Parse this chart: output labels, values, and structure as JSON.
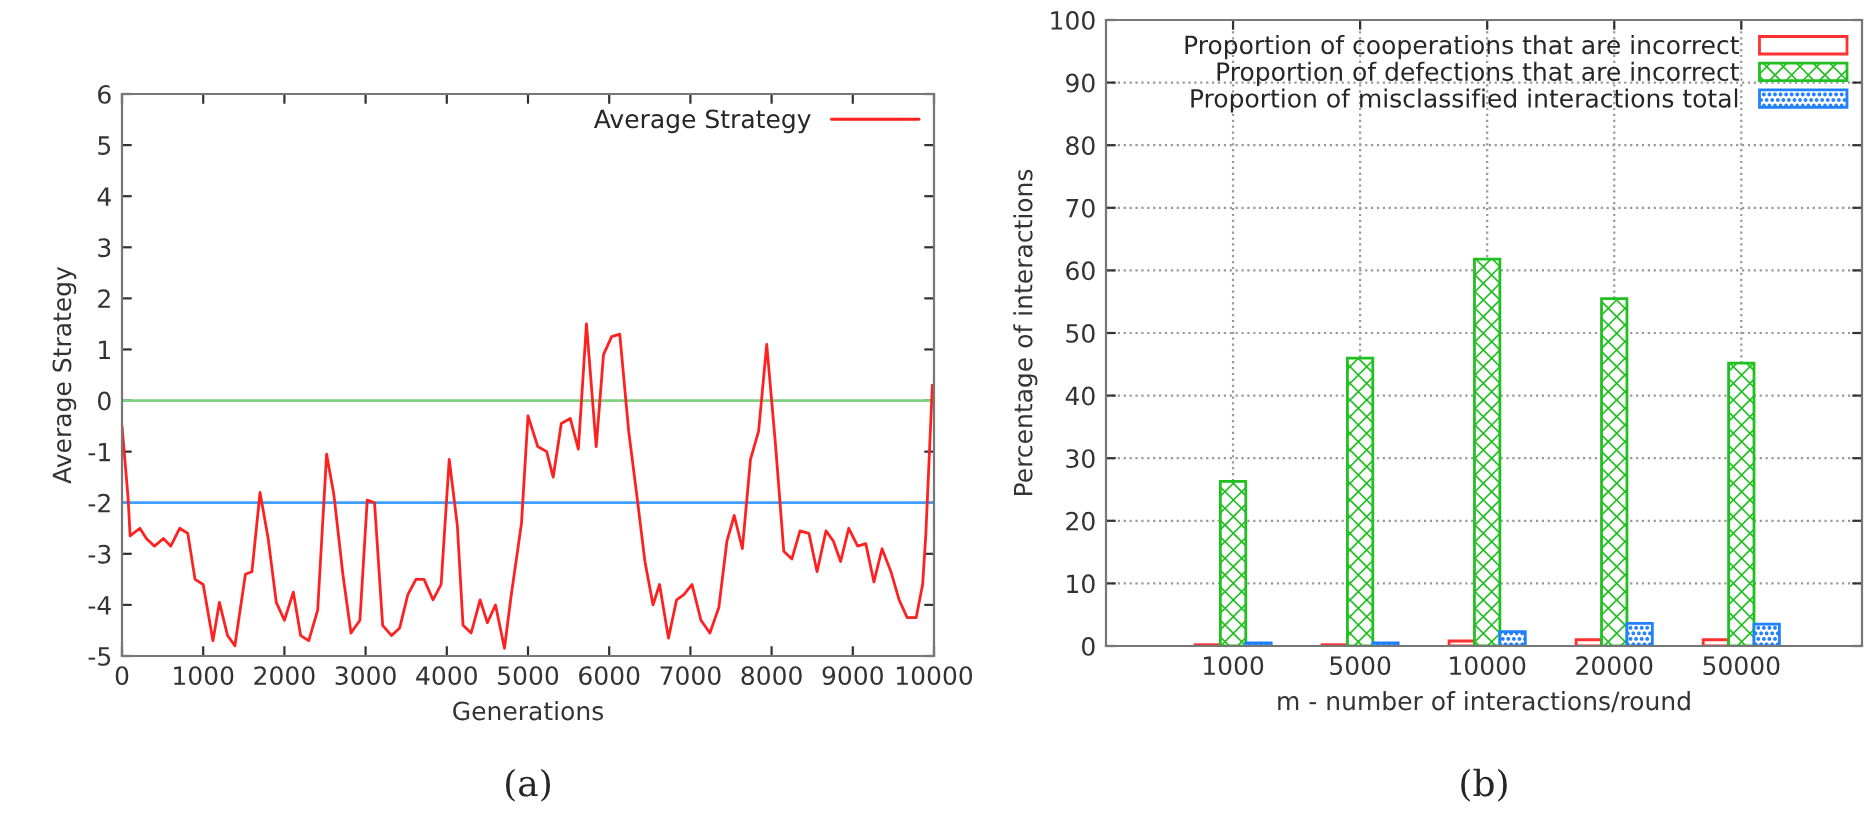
{
  "chart_data": [
    {
      "type": "line",
      "xlabel": "Generations",
      "ylabel": "Average Strategy",
      "annotations": [
        "(a)"
      ],
      "xlim": [
        0,
        10000
      ],
      "xticks": [
        0,
        1000,
        2000,
        3000,
        4000,
        5000,
        6000,
        7000,
        8000,
        9000,
        {
          "value": 10000,
          "label": "10000"
        }
      ],
      "ylim": [
        -5,
        6
      ],
      "yticks": [
        -5,
        -4,
        -3,
        -2,
        -1,
        0,
        1,
        2,
        3,
        4,
        5,
        6
      ],
      "grid": false,
      "legend": "top right",
      "ref_lines": [
        {
          "axis": "y",
          "value": 0,
          "color": "#7fd07f"
        },
        {
          "axis": "y",
          "value": -2,
          "color": "#3f9fff"
        }
      ],
      "series": [
        {
          "name": "Average Strategy",
          "color": "#ff2020",
          "x": [
            0,
            75,
            100,
            220,
            300,
            400,
            510,
            600,
            710,
            810,
            900,
            1000,
            1120,
            1200,
            1300,
            1390,
            1520,
            1600,
            1700,
            1800,
            1900,
            2000,
            2110,
            2200,
            2300,
            2410,
            2520,
            2610,
            2720,
            2820,
            2930,
            3020,
            3110,
            3210,
            3320,
            3420,
            3520,
            3620,
            3720,
            3830,
            3930,
            4030,
            4130,
            4200,
            4300,
            4410,
            4500,
            4600,
            4710,
            4790,
            4920,
            5000,
            5120,
            5230,
            5310,
            5410,
            5520,
            5620,
            5720,
            5840,
            5930,
            6030,
            6130,
            6240,
            6340,
            6440,
            6540,
            6620,
            6730,
            6830,
            6920,
            7020,
            7130,
            7240,
            7350,
            7450,
            7540,
            7640,
            7740,
            7840,
            7940,
            8050,
            8150,
            8250,
            8350,
            8460,
            8560,
            8670,
            8760,
            8850,
            8950,
            9060,
            9160,
            9260,
            9360,
            9470,
            9570,
            9670,
            9780,
            9860,
            9900,
            9980
          ],
          "values": [
            -0.5,
            -1.9,
            -2.65,
            -2.5,
            -2.7,
            -2.85,
            -2.7,
            -2.85,
            -2.5,
            -2.6,
            -3.5,
            -3.6,
            -4.7,
            -3.95,
            -4.6,
            -4.8,
            -3.4,
            -3.35,
            -1.8,
            -2.7,
            -3.95,
            -4.3,
            -3.75,
            -4.6,
            -4.7,
            -4.1,
            -1.05,
            -1.85,
            -3.4,
            -4.55,
            -4.3,
            -1.95,
            -2.0,
            -4.4,
            -4.6,
            -4.45,
            -3.8,
            -3.5,
            -3.5,
            -3.9,
            -3.6,
            -1.15,
            -2.45,
            -4.4,
            -4.55,
            -3.9,
            -4.35,
            -4.0,
            -4.85,
            -3.85,
            -2.4,
            -0.3,
            -0.9,
            -1.0,
            -1.5,
            -0.45,
            -0.35,
            -0.95,
            1.5,
            -0.9,
            0.9,
            1.25,
            1.3,
            -0.6,
            -1.85,
            -3.15,
            -4.0,
            -3.6,
            -4.65,
            -3.9,
            -3.8,
            -3.6,
            -4.3,
            -4.55,
            -4.05,
            -2.75,
            -2.25,
            -2.9,
            -1.15,
            -0.6,
            1.1,
            -0.9,
            -2.95,
            -3.1,
            -2.55,
            -2.6,
            -3.35,
            -2.55,
            -2.75,
            -3.15,
            -2.5,
            -2.85,
            -2.8,
            -3.55,
            -2.9,
            -3.35,
            -3.9,
            -4.25,
            -4.25,
            -3.6,
            -2.6,
            0.3
          ]
        }
      ]
    },
    {
      "type": "bar",
      "xlabel": "m - number of interactions/round",
      "ylabel": "Percentage of interactions",
      "annotations": [
        "(b)"
      ],
      "categories": [
        "1000",
        "5000",
        "10000",
        "20000",
        "50000"
      ],
      "ylim": [
        0,
        100
      ],
      "yticks": [
        0,
        10,
        20,
        30,
        40,
        50,
        60,
        70,
        80,
        90,
        100
      ],
      "grid": true,
      "legend": "top right",
      "series": [
        {
          "name": "Proportion of cooperations that are incorrect",
          "color": "#ff3030",
          "values": [
            0.2,
            0.2,
            0.8,
            1.0,
            1.0
          ]
        },
        {
          "name": "Proportion of defections that are incorrect",
          "color": "#20c020",
          "values": [
            26.3,
            46.0,
            61.8,
            55.5,
            45.2
          ]
        },
        {
          "name": "Proportion of misclassified interactions total",
          "color": "#2080ff",
          "values": [
            0.5,
            0.5,
            2.3,
            3.6,
            3.5
          ]
        }
      ]
    }
  ]
}
